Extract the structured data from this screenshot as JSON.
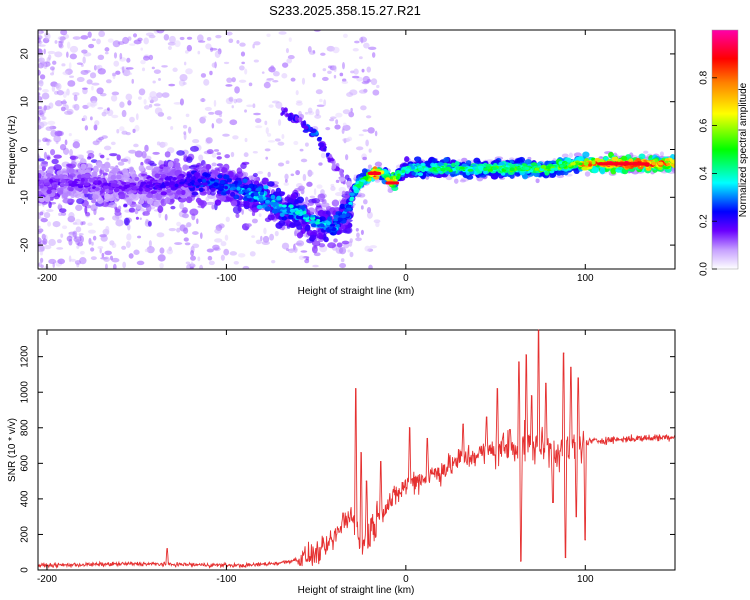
{
  "title": "S233.2025.358.15.27.R21",
  "chart_data": [
    {
      "type": "heatmap",
      "xlabel": "Height of straight line (km)",
      "ylabel": "Frequency (Hz)",
      "xlim": [
        -205,
        150
      ],
      "ylim": [
        -25,
        25
      ],
      "xticks": [
        -200,
        -100,
        0,
        100
      ],
      "yticks": [
        -20,
        -10,
        0,
        10,
        20
      ],
      "colorbar": {
        "label": "Normalized spectral amplitude",
        "range": [
          0,
          1
        ],
        "ticks": [
          "0.0",
          "0.2",
          "0.4",
          "0.6",
          "0.8"
        ],
        "tick_values": [
          0,
          0.2,
          0.4,
          0.6,
          0.8
        ],
        "colors": [
          "#ffffff",
          "#c6a0ff",
          "#6a00ff",
          "#0000ff",
          "#00ffff",
          "#00ff00",
          "#ffff00",
          "#ff8000",
          "#ff0000",
          "#ff00aa"
        ]
      },
      "dominant_track": {
        "x": [
          -205,
          -180,
          -150,
          -130,
          -110,
          -95,
          -80,
          -70,
          -60,
          -50,
          -40,
          -33,
          -28,
          -22,
          -18,
          -12,
          -8,
          -3,
          0,
          20,
          40,
          60,
          80,
          95,
          100,
          120,
          150
        ],
        "freq": [
          -7,
          -7,
          -8,
          -7,
          -7,
          -8,
          -10,
          -12,
          -13,
          -15,
          -16,
          -13,
          -8,
          -6,
          -5,
          -5,
          -7,
          -5,
          -4,
          -4,
          -4,
          -4,
          -4,
          -3,
          -3,
          -3,
          -3
        ],
        "amplitude": [
          0.15,
          0.15,
          0.15,
          0.2,
          0.25,
          0.3,
          0.35,
          0.35,
          0.35,
          0.35,
          0.3,
          0.3,
          0.4,
          0.5,
          0.85,
          0.5,
          0.85,
          0.4,
          0.4,
          0.45,
          0.45,
          0.5,
          0.5,
          0.55,
          0.75,
          0.9,
          0.7
        ]
      },
      "secondary_track": {
        "x": [
          -70,
          -60,
          -50,
          -45,
          -40,
          -35,
          -30
        ],
        "freq": [
          8,
          6,
          3,
          0,
          -3,
          -6,
          -8
        ],
        "amplitude": [
          0.15,
          0.2,
          0.25,
          0.2,
          0.15,
          0.1,
          0.08
        ]
      }
    },
    {
      "type": "line",
      "xlabel": "Height of straight line (km)",
      "ylabel": "SNR (10 * v/v)",
      "xlim": [
        -205,
        150
      ],
      "ylim": [
        0,
        1350
      ],
      "xticks": [
        -200,
        -100,
        0,
        100
      ],
      "yticks": [
        0,
        200,
        400,
        600,
        800,
        1000,
        1200
      ],
      "color": "#e53030",
      "baseline": {
        "x": [
          -205,
          -180,
          -150,
          -120,
          -90,
          -70,
          -60,
          -50,
          -45,
          -40,
          -35,
          -30,
          -25,
          -20,
          -15,
          -10,
          -5,
          0,
          10,
          20,
          30,
          40,
          50,
          60,
          70,
          80,
          90,
          95,
          100,
          110,
          130,
          150
        ],
        "snr": [
          25,
          30,
          35,
          30,
          25,
          40,
          60,
          90,
          120,
          180,
          250,
          330,
          120,
          220,
          300,
          370,
          420,
          480,
          520,
          560,
          620,
          650,
          680,
          700,
          690,
          680,
          670,
          700,
          720,
          730,
          740,
          750
        ]
      },
      "peaks": [
        {
          "x": -133,
          "snr": 120
        },
        {
          "x": -35,
          "snr": 320
        },
        {
          "x": -28,
          "snr": 1020
        },
        {
          "x": -25,
          "snr": 660
        },
        {
          "x": -22,
          "snr": 500
        },
        {
          "x": -14,
          "snr": 610
        },
        {
          "x": 2,
          "snr": 800
        },
        {
          "x": 12,
          "snr": 740
        },
        {
          "x": 32,
          "snr": 820
        },
        {
          "x": 45,
          "snr": 860
        },
        {
          "x": 51,
          "snr": 1020
        },
        {
          "x": 58,
          "snr": 790
        },
        {
          "x": 63,
          "snr": 1170
        },
        {
          "x": 64,
          "snr": 50
        },
        {
          "x": 67,
          "snr": 1210
        },
        {
          "x": 70,
          "snr": 980
        },
        {
          "x": 74,
          "snr": 1350
        },
        {
          "x": 78,
          "snr": 1050
        },
        {
          "x": 82,
          "snr": 380
        },
        {
          "x": 88,
          "snr": 1220
        },
        {
          "x": 89,
          "snr": 70
        },
        {
          "x": 92,
          "snr": 1140
        },
        {
          "x": 95,
          "snr": 300
        },
        {
          "x": 96,
          "snr": 1080
        },
        {
          "x": 100,
          "snr": 170
        }
      ]
    }
  ]
}
